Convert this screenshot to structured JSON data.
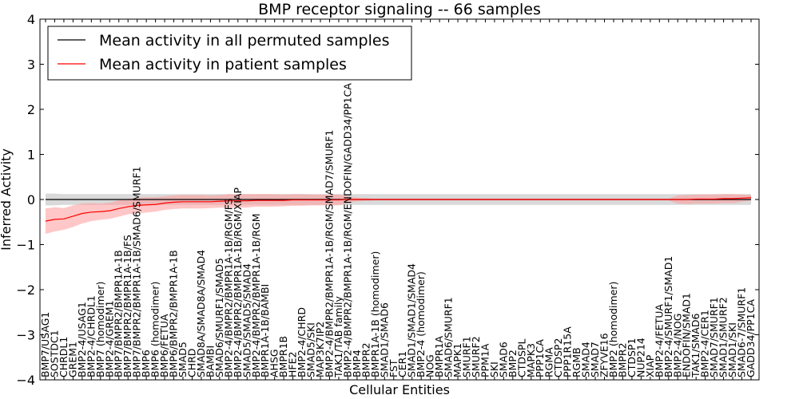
{
  "chart_data": {
    "type": "line",
    "title": "BMP receptor signaling -- 66 samples",
    "xlabel": "Cellular Entities",
    "ylabel": "Inferred Activity",
    "ylim": [
      -4,
      4
    ],
    "yticks": [
      -4,
      -3,
      -2,
      -1,
      0,
      1,
      2,
      3,
      4
    ],
    "ytick_labels": [
      "−4",
      "−3",
      "−2",
      "−1",
      "0",
      "1",
      "2",
      "3",
      "4"
    ],
    "grid": false,
    "legend_position": "top-left",
    "categories": [
      "BMP7/USAG1",
      "SOSTDC1",
      "CHRDL1",
      "GREM1",
      "BMP2-4/USAG1",
      "BMP2-4/CHRDL1",
      "BMP7 (homodimer)",
      "BMP2-4/GREM1",
      "BMP7/BMPR2/BMPR1A-1B",
      "BMP7/BMPR2/BMPR1A-1B/FS",
      "BMP7/BMPR2/BMPR1A-1B/SMAD6/SMURF1",
      "BMP6",
      "BMP6 (homodimer)",
      "BMP6/FETUA",
      "BMP6/BMPR2/BMPR1A-1B",
      "SMAD5",
      "CHRD",
      "SMAD8A/SMAD8A/SMAD4",
      "BAMBI",
      "SMAD6/SMURF1/SMAD5",
      "BMP2-4/BMPR2/BMPR1A-1B/RGM/FS",
      "BMP2-4/BMPR2/BMPR1A-1B/RGM/XIAP",
      "SMAD5/SMAD5/SMAD4",
      "BMP2-4/BMPR2/BMPR1A-1B/RGM",
      "BMPR1A-1B/BAMBI",
      "AHSG",
      "BMPR1B",
      "HFE2",
      "BMP2-4/CHRD",
      "SMAD5/SKI",
      "MAP3K7IP2",
      "BMP2-4/BMPR2/BMPR1A-1B/RGM/SMAD7/SMURF1",
      "TAK1/TAB family",
      "BMP2-4/BMPR2/BMPR1A-1B/RGM/ENDOFIN/GADD34/PP1CA",
      "BMP4",
      "BMPR2",
      "BMPR1A-1B (homodimer)",
      "SMAD1/SMAD6",
      "FST",
      "CER1",
      "SMAD1/SMAD1/SMAD4",
      "BMP2-4 (homodimer)",
      "NOG",
      "BMPR1A",
      "SMAD6/SMURF1",
      "MAPK1",
      "SMURF1",
      "SMURF2",
      "PPM1A",
      "SKI",
      "SMAD6",
      "BMP2",
      "CTDSPL",
      "MAPK3",
      "PPP1CA",
      "RGMA",
      "CTDSP2",
      "PPP1R15A",
      "RGMB",
      "SMAD4",
      "SMAD7",
      "ZFYVE16",
      "BMP2 (homodimer)",
      "BMPR2",
      "CTDSP1",
      "NUP214",
      "XIAP",
      "BMP2-4/FETUA",
      "BMP2-4/SMURF1/SMAD1",
      "BMP2-4/NOG",
      "ENDOFIN/SMAD1",
      "TAK1/SMAD6",
      "BMP2-4/CER1",
      "SMAD7/SMURF1",
      "SMAD1/SMURF2",
      "SMAD1/SKI",
      "SMAD6-7/SMURF1",
      "GADD34/PP1CA"
    ],
    "series": [
      {
        "name": "Mean activity in all permuted samples",
        "color": "#000000",
        "band_color": "#bfbfbf",
        "values": [
          0,
          0,
          0,
          0,
          0,
          0,
          0,
          0,
          0,
          0,
          0,
          0,
          0,
          0,
          0,
          0,
          0,
          0,
          0,
          0,
          0,
          0,
          0,
          0,
          0,
          0,
          0,
          0,
          0,
          0,
          0,
          0,
          0,
          0,
          0,
          0,
          0,
          0,
          0,
          0,
          0,
          0,
          0,
          0,
          0,
          0,
          0,
          0,
          0,
          0,
          0,
          0,
          0,
          0,
          0,
          0,
          0,
          0,
          0,
          0,
          0,
          0,
          0,
          0,
          0,
          0,
          0,
          0,
          0,
          0,
          0,
          0,
          0,
          0,
          0,
          0,
          0,
          0
        ],
        "band": [
          0.13,
          0.13,
          0.12,
          0.12,
          0.12,
          0.12,
          0.12,
          0.12,
          0.12,
          0.12,
          0.12,
          0.12,
          0.12,
          0.12,
          0.12,
          0.12,
          0.12,
          0.12,
          0.12,
          0.12,
          0.12,
          0.12,
          0.12,
          0.12,
          0.12,
          0.12,
          0.12,
          0.12,
          0.12,
          0.12,
          0.12,
          0.12,
          0.12,
          0.12,
          0.12,
          0.12,
          0.12,
          0.12,
          0.12,
          0.12,
          0.12,
          0.12,
          0.12,
          0.12,
          0.12,
          0.12,
          0.12,
          0.12,
          0.12,
          0.12,
          0.12,
          0.12,
          0.12,
          0.12,
          0.12,
          0.12,
          0.12,
          0.12,
          0.12,
          0.12,
          0.12,
          0.12,
          0.12,
          0.12,
          0.12,
          0.12,
          0.12,
          0.12,
          0.12,
          0.12,
          0.12,
          0.12,
          0.12,
          0.12,
          0.12,
          0.12,
          0.12,
          0.12
        ]
      },
      {
        "name": "Mean activity in patient samples",
        "color": "#ff0000",
        "band_color": "#ff9999",
        "values": [
          -0.48,
          -0.44,
          -0.43,
          -0.37,
          -0.31,
          -0.28,
          -0.27,
          -0.25,
          -0.2,
          -0.16,
          -0.13,
          -0.12,
          -0.11,
          -0.08,
          -0.06,
          -0.05,
          -0.05,
          -0.05,
          -0.05,
          -0.04,
          -0.03,
          -0.03,
          -0.03,
          -0.02,
          -0.02,
          -0.02,
          -0.02,
          -0.01,
          -0.01,
          -0.01,
          -0.01,
          -0.01,
          -0.01,
          0,
          0,
          0,
          0,
          0,
          0,
          0,
          0,
          0,
          0,
          0,
          0,
          0,
          0,
          0,
          0,
          0,
          0,
          0,
          0,
          0,
          0,
          0,
          0,
          0,
          0,
          0,
          0,
          0,
          0,
          0,
          0,
          0,
          0,
          0,
          0,
          0,
          0,
          0.01,
          0.01,
          0.01,
          0.02,
          0.02,
          0.03,
          0.04
        ],
        "band": [
          0.28,
          0.27,
          0.24,
          0.24,
          0.22,
          0.2,
          0.18,
          0.18,
          0.18,
          0.17,
          0.17,
          0.17,
          0.16,
          0.15,
          0.15,
          0.15,
          0.15,
          0.15,
          0.14,
          0.14,
          0.15,
          0.15,
          0.15,
          0.14,
          0.14,
          0.14,
          0.13,
          0.13,
          0.13,
          0.12,
          0.12,
          0.12,
          0.12,
          0.07,
          0.04,
          0.03,
          0.02,
          0.02,
          0.02,
          0.02,
          0.02,
          0.02,
          0.02,
          0.02,
          0.02,
          0.02,
          0.02,
          0.02,
          0.02,
          0.02,
          0.02,
          0.02,
          0.02,
          0.02,
          0.02,
          0.02,
          0.02,
          0.02,
          0.02,
          0.02,
          0.02,
          0.02,
          0.02,
          0.02,
          0.02,
          0.02,
          0.02,
          0.02,
          0.02,
          0.09,
          0.1,
          0.1,
          0.1,
          0.1,
          0.1,
          0.1,
          0.08,
          0.06
        ]
      }
    ]
  }
}
